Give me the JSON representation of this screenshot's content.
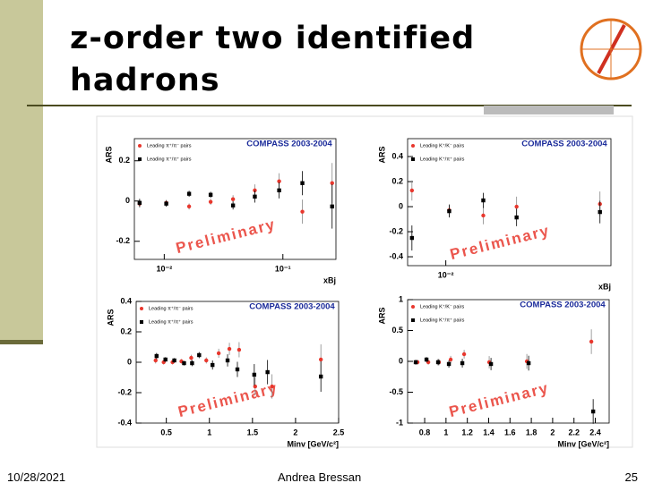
{
  "slide": {
    "title": "z-order two identified hadrons",
    "date": "10/28/2021",
    "author": "Andrea Bressan",
    "page": "25"
  },
  "chart_data": [
    {
      "type": "scatter",
      "title": "COMPASS 2003-2004",
      "y_label": "ARS",
      "x_label": "xBj",
      "annotation": "Preliminary",
      "log_x": true,
      "xlim": [
        0.0056,
        0.28
      ],
      "ylim": [
        -0.29,
        0.31
      ],
      "xticks": [
        {
          "value": 0.01,
          "label": "10⁻²"
        },
        {
          "value": 0.1,
          "label": "10⁻¹"
        }
      ],
      "yticks": [
        -0.2,
        0,
        0.2
      ],
      "series": [
        {
          "name": "Leading π⁺/π⁻ pairs",
          "color": "#e8372d",
          "marker": "circle",
          "x": [
            0.0062,
            0.0104,
            0.0162,
            0.0246,
            0.038,
            0.058,
            0.093,
            0.146,
            0.26
          ],
          "values": [
            -0.013,
            -0.009,
            -0.027,
            -0.004,
            0.009,
            0.053,
            0.098,
            -0.053,
            0.089
          ],
          "errors": [
            0.02,
            0.015,
            0.015,
            0.015,
            0.02,
            0.03,
            0.04,
            0.06,
            0.1
          ]
        },
        {
          "name": "Leading π⁺/π⁺ pairs",
          "color": "#000000",
          "marker": "square",
          "x": [
            0.0062,
            0.0104,
            0.0162,
            0.0246,
            0.038,
            0.058,
            0.093,
            0.146,
            0.26
          ],
          "values": [
            -0.009,
            -0.013,
            0.036,
            0.031,
            -0.022,
            0.022,
            0.053,
            0.089,
            -0.027
          ],
          "errors": [
            0.02,
            0.015,
            0.015,
            0.015,
            0.02,
            0.03,
            0.04,
            0.06,
            0.11
          ]
        }
      ]
    },
    {
      "type": "scatter",
      "title": "COMPASS 2003-2004",
      "y_label": "ARS",
      "x_label": "xBj",
      "annotation": "Preliminary",
      "log_x": true,
      "xlim": [
        0.0052,
        0.169
      ],
      "ylim": [
        -0.471,
        0.543
      ],
      "xticks": [
        {
          "value": 0.01,
          "label": "10⁻²"
        }
      ],
      "yticks": [
        -0.4,
        -0.2,
        0,
        0.2,
        0.4
      ],
      "series": [
        {
          "name": "Leading K⁺/K⁻ pairs",
          "color": "#e8372d",
          "marker": "circle",
          "x": [
            0.0056,
            0.0106,
            0.019,
            0.0336,
            0.14
          ],
          "values": [
            0.129,
            -0.029,
            -0.071,
            0,
            0.021
          ],
          "errors": [
            0.08,
            0.05,
            0.07,
            0.08,
            0.1
          ]
        },
        {
          "name": "Leading K⁺/π⁺ pairs",
          "color": "#000000",
          "marker": "square",
          "x": [
            0.0056,
            0.0106,
            0.019,
            0.0336,
            0.14
          ],
          "values": [
            -0.25,
            -0.036,
            0.05,
            -0.086,
            -0.043
          ],
          "errors": [
            0.1,
            0.05,
            0.06,
            0.07,
            0.09
          ]
        }
      ]
    },
    {
      "type": "scatter",
      "title": "COMPASS 2003-2004",
      "y_label": "ARS",
      "x_label": "Minv [GeV/c²]",
      "annotation": "Preliminary",
      "log_x": false,
      "xlim": [
        0.15,
        2.5
      ],
      "ylim": [
        -0.4,
        0.4
      ],
      "xticks": [
        0.5,
        1,
        1.5,
        2,
        2.5
      ],
      "yticks": [
        -0.4,
        -0.2,
        0,
        0.2,
        0.4
      ],
      "series": [
        {
          "name": "Leading π⁺/π⁻ pairs",
          "color": "#e8372d",
          "marker": "circle",
          "x": [
            0.376,
            0.469,
            0.572,
            0.675,
            0.789,
            0.964,
            1.108,
            1.232,
            1.345,
            1.531,
            1.727,
            2.294
          ],
          "values": [
            0.012,
            0,
            0,
            0.006,
            0.029,
            0.012,
            0.059,
            0.088,
            0.082,
            -0.159,
            -0.159,
            0.018
          ],
          "errors": [
            0.02,
            0.015,
            0.015,
            0.015,
            0.02,
            0.02,
            0.03,
            0.04,
            0.05,
            0.06,
            0.08,
            0.1
          ]
        },
        {
          "name": "Leading π⁺/π⁺ pairs",
          "color": "#000000",
          "marker": "square",
          "x": [
            0.387,
            0.49,
            0.593,
            0.706,
            0.799,
            0.881,
            1.036,
            1.211,
            1.325,
            1.521,
            1.675,
            2.294
          ],
          "values": [
            0.041,
            0.018,
            0.012,
            -0.006,
            -0.006,
            0.047,
            -0.018,
            0.012,
            -0.047,
            -0.082,
            -0.065,
            -0.094
          ],
          "errors": [
            0.02,
            0.015,
            0.015,
            0.015,
            0.02,
            0.02,
            0.03,
            0.04,
            0.05,
            0.07,
            0.08,
            0.1
          ]
        }
      ]
    },
    {
      "type": "scatter",
      "title": "COMPASS 2003-2004",
      "y_label": "ARS",
      "x_label": "Minv [GeV/c²]",
      "annotation": "Preliminary",
      "log_x": false,
      "xlim": [
        0.64,
        2.53
      ],
      "ylim": [
        -1,
        1
      ],
      "xticks": [
        0.8,
        1,
        1.2,
        1.4,
        1.6,
        1.8,
        2,
        2.2,
        2.4
      ],
      "yticks": [
        -1,
        -0.5,
        0,
        0.5,
        1
      ],
      "series": [
        {
          "name": "Leading K⁺/K⁻ pairs",
          "color": "#e8372d",
          "marker": "circle",
          "x": [
            0.733,
            0.834,
            0.934,
            1.044,
            1.17,
            1.405,
            1.758,
            2.363
          ],
          "values": [
            -0.014,
            -0.014,
            -0.014,
            0.029,
            0.116,
            -0.014,
            0,
            0.319
          ],
          "errors": [
            0.04,
            0.04,
            0.05,
            0.06,
            0.07,
            0.1,
            0.12,
            0.2
          ]
        },
        {
          "name": "Leading K⁺/π⁺ pairs",
          "color": "#000000",
          "marker": "square",
          "x": [
            0.716,
            0.817,
            0.926,
            1.027,
            1.153,
            1.422,
            1.775,
            2.38
          ],
          "values": [
            -0.014,
            0.029,
            -0.014,
            -0.043,
            -0.029,
            -0.043,
            -0.029,
            -0.812
          ],
          "errors": [
            0.04,
            0.04,
            0.05,
            0.06,
            0.07,
            0.1,
            0.12,
            0.2
          ]
        }
      ]
    }
  ]
}
